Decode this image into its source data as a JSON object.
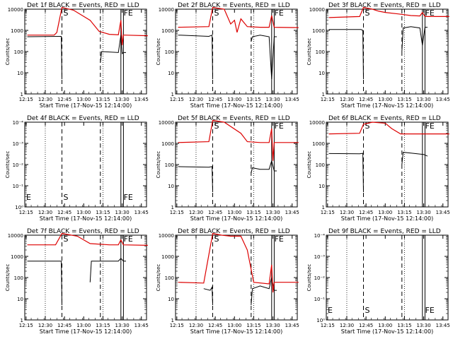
{
  "figure": {
    "xlabel": "Start Time (17-Nov-15 12:14:00)",
    "ylabel": "Counts/sec",
    "xtick_labels": [
      "12:15",
      "12:30",
      "12:45",
      "13:00",
      "13:15",
      "13:30",
      "13:45"
    ],
    "ytick_labels_log": [
      "1",
      "10",
      "100",
      "1000",
      "10000"
    ],
    "ytick_labels_empty": [
      "10⁰",
      "10⁻¹",
      "10⁻²",
      "10⁻³",
      "10⁻⁴"
    ],
    "colors": {
      "events": "#000000",
      "lld": "#dd0000",
      "axes": "#000000"
    }
  },
  "chart_data": [
    {
      "type": "line",
      "title": "Det 1f BLACK = Events, RED = LLD",
      "yscale": "log",
      "ylim": [
        1,
        10000
      ],
      "markers": [
        {
          "t": "12:43",
          "label": "S"
        },
        {
          "t": "13:30",
          "label": "FE"
        }
      ],
      "series": [
        {
          "name": "Events",
          "x": [
            "12:16",
            "12:41",
            "12:42.5",
            "12:43",
            "12:44",
            "13:12",
            "13:13",
            "13:14",
            "13:27",
            "13:29",
            "13:30",
            "13:31",
            "13:33"
          ],
          "y": [
            500,
            520,
            520,
            5,
            null,
            null,
            30,
            100,
            90,
            600,
            80,
            90,
            90
          ]
        },
        {
          "name": "LLD",
          "x": [
            "12:16",
            "12:37",
            "12:39",
            "12:43",
            "12:52",
            "13:05",
            "13:12",
            "13:20",
            "13:27",
            "13:29",
            "13:30",
            "13:31",
            "13:32",
            "13:50"
          ],
          "y": [
            600,
            600,
            800,
            12000,
            9000,
            3000,
            900,
            650,
            620,
            3000,
            200,
            600,
            600,
            560
          ]
        }
      ]
    },
    {
      "type": "line",
      "title": "Det 2f BLACK = Events, RED = LLD",
      "yscale": "log",
      "ylim": [
        1,
        10000
      ],
      "markers": [
        {
          "t": "12:43",
          "label": "S"
        },
        {
          "t": "13:30",
          "label": "FE"
        }
      ],
      "series": [
        {
          "name": "Events",
          "x": [
            "12:16",
            "12:40",
            "12:42.5",
            "12:43",
            "12:44",
            "13:12",
            "13:13",
            "13:14",
            "13:20",
            "13:27",
            "13:29",
            "13:31",
            "13:33"
          ],
          "y": [
            600,
            520,
            600,
            5,
            null,
            null,
            300,
            500,
            600,
            500,
            5,
            500,
            500
          ]
        },
        {
          "name": "LLD",
          "x": [
            "12:16",
            "12:40",
            "12:43",
            "12:52",
            "12:57",
            "13:00",
            "13:02",
            "13:05",
            "13:10",
            "13:20",
            "13:27",
            "13:29",
            "13:31",
            "13:50"
          ],
          "y": [
            1400,
            1500,
            12000,
            10000,
            2000,
            3000,
            800,
            3500,
            1500,
            1400,
            1400,
            5000,
            1400,
            1350
          ]
        }
      ]
    },
    {
      "type": "line",
      "title": "Det 3f BLACK = Events, RED = LLD",
      "yscale": "log",
      "ylim": [
        1,
        10000
      ],
      "markers": [
        {
          "t": "12:43",
          "label": "S"
        },
        {
          "t": "13:30",
          "label": "FE"
        }
      ],
      "series": [
        {
          "name": "Events",
          "x": [
            "12:16",
            "12:41",
            "12:42.5",
            "12:43",
            "12:44",
            "13:12",
            "13:13",
            "13:14",
            "13:20",
            "13:27",
            "13:29",
            "13:31",
            "13:33"
          ],
          "y": [
            1100,
            1100,
            1000,
            5,
            null,
            null,
            100,
            1300,
            1500,
            1300,
            200,
            1400,
            1400
          ]
        },
        {
          "name": "LLD",
          "x": [
            "12:16",
            "12:40",
            "12:43",
            "12:50",
            "12:55",
            "13:00",
            "13:10",
            "13:20",
            "13:27",
            "13:29",
            "13:31",
            "13:50"
          ],
          "y": [
            4000,
            4500,
            12000,
            10000,
            8000,
            7000,
            6000,
            5000,
            4800,
            7000,
            4500,
            4500
          ]
        }
      ]
    },
    {
      "type": "line",
      "title": "Det 4f BLACK = Events, RED = LLD",
      "yscale": "log",
      "ylim": [
        1,
        0.0001
      ],
      "markers": [
        {
          "t": "12:43",
          "label": "S"
        },
        {
          "t": "13:30",
          "label": "FE"
        }
      ],
      "series": []
    },
    {
      "type": "line",
      "title": "Det 5f BLACK = Events, RED = LLD",
      "yscale": "log",
      "ylim": [
        1,
        10000
      ],
      "markers": [
        {
          "t": "12:43",
          "label": "S"
        },
        {
          "t": "13:30",
          "label": "FE"
        }
      ],
      "series": [
        {
          "name": "Events",
          "x": [
            "12:16",
            "12:40",
            "12:42.5",
            "12:43",
            "12:44",
            "13:12",
            "13:13",
            "13:14",
            "13:20",
            "13:27",
            "13:29",
            "13:31",
            "13:33"
          ],
          "y": [
            80,
            75,
            80,
            5,
            null,
            null,
            40,
            70,
            60,
            60,
            150,
            50,
            50
          ]
        },
        {
          "name": "LLD",
          "x": [
            "12:16",
            "12:40",
            "12:43",
            "12:52",
            "13:05",
            "13:10",
            "13:20",
            "13:27",
            "13:29",
            "13:30",
            "13:31",
            "13:50"
          ],
          "y": [
            1100,
            1200,
            12000,
            10000,
            3000,
            1200,
            1100,
            1100,
            5000,
            150,
            1100,
            1100
          ]
        }
      ]
    },
    {
      "type": "line",
      "title": "Det 6f BLACK = Events, RED = LLD",
      "yscale": "log",
      "ylim": [
        1,
        10000
      ],
      "markers": [
        {
          "t": "12:43",
          "label": "S"
        },
        {
          "t": "13:30",
          "label": "FE"
        }
      ],
      "series": [
        {
          "name": "Events",
          "x": [
            "12:16",
            "12:40",
            "12:42.5",
            "12:43",
            "12:44",
            "13:12",
            "13:13",
            "13:14",
            "13:20",
            "13:30",
            "13:33"
          ],
          "y": [
            330,
            320,
            340,
            5,
            null,
            null,
            100,
            380,
            350,
            300,
            250
          ]
        },
        {
          "name": "LLD",
          "x": [
            "12:16",
            "12:40",
            "12:43",
            "12:50",
            "13:00",
            "13:05",
            "13:12",
            "13:50"
          ],
          "y": [
            2800,
            3000,
            8000,
            10000,
            9000,
            5000,
            2800,
            2800
          ]
        }
      ]
    },
    {
      "type": "line",
      "title": "Det 7f BLACK = Events, RED = LLD",
      "yscale": "log",
      "ylim": [
        1,
        10000
      ],
      "markers": [
        {
          "t": "12:43",
          "label": "S"
        },
        {
          "t": "13:30",
          "label": "FE"
        }
      ],
      "series": [
        {
          "name": "Events",
          "x": [
            "12:16",
            "12:41",
            "12:42.5",
            "12:43",
            "12:44",
            "13:04",
            "13:05",
            "13:06",
            "13:12",
            "13:27",
            "13:29",
            "13:31",
            "13:33"
          ],
          "y": [
            600,
            600,
            600,
            5,
            null,
            null,
            60,
            600,
            600,
            600,
            800,
            600,
            600
          ]
        },
        {
          "name": "LLD",
          "x": [
            "12:16",
            "12:38",
            "12:43",
            "12:55",
            "13:05",
            "13:20",
            "13:27",
            "13:29",
            "13:31",
            "13:50"
          ],
          "y": [
            3500,
            3500,
            12000,
            9000,
            4000,
            3500,
            3500,
            6000,
            3500,
            3300
          ]
        }
      ]
    },
    {
      "type": "line",
      "title": "Det 8f BLACK = Events, RED = LLD",
      "yscale": "log",
      "ylim": [
        1,
        10000
      ],
      "markers": [
        {
          "t": "12:43",
          "label": "S"
        },
        {
          "t": "13:30",
          "label": "FE"
        }
      ],
      "series": [
        {
          "name": "Events",
          "x": [
            "12:36",
            "12:41",
            "12:42.5",
            "12:43",
            "12:44",
            "13:12",
            "13:13",
            "13:14",
            "13:20",
            "13:27",
            "13:29",
            "13:31",
            "13:33"
          ],
          "y": [
            30,
            25,
            35,
            5,
            null,
            null,
            5,
            30,
            40,
            30,
            100,
            25,
            25
          ]
        },
        {
          "name": "LLD",
          "x": [
            "12:16",
            "12:36",
            "12:43",
            "12:50",
            "12:57",
            "13:05",
            "13:10",
            "13:15",
            "13:27",
            "13:29",
            "13:30",
            "13:31",
            "13:50"
          ],
          "y": [
            60,
            55,
            12000,
            10000,
            9000,
            9000,
            2000,
            60,
            50,
            400,
            20,
            60,
            60
          ]
        }
      ]
    },
    {
      "type": "line",
      "title": "Det 9f BLACK = Events, RED = LLD",
      "yscale": "log",
      "ylim": [
        1,
        0.0001
      ],
      "markers": [
        {
          "t": "12:43",
          "label": "S"
        },
        {
          "t": "13:30",
          "label": "FE"
        }
      ],
      "series": []
    }
  ]
}
